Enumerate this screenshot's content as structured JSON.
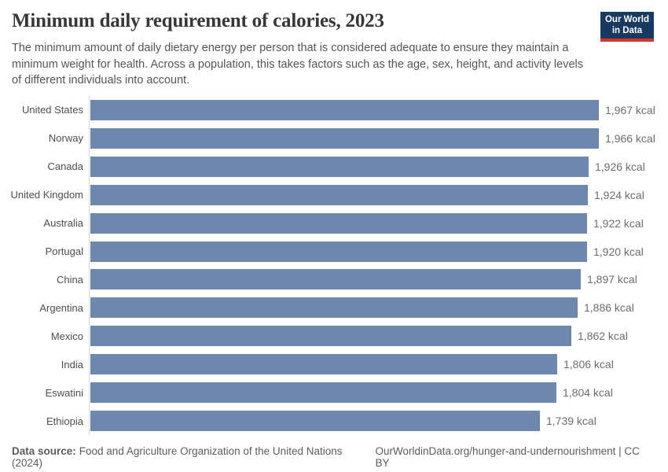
{
  "header": {
    "title": "Minimum daily requirement of calories, 2023",
    "subtitle": "The minimum amount of daily dietary energy per person that is considered adequate to ensure they maintain a minimum weight for health. Across a population, this takes factors such as the age, sex, height, and activity levels of different individuals into account.",
    "logo_line1": "Our World",
    "logo_line2": "in Data"
  },
  "chart_data": {
    "type": "bar",
    "orientation": "horizontal",
    "title": "Minimum daily requirement of calories, 2023",
    "unit": "kcal",
    "xlim": [
      0,
      1967
    ],
    "grid": false,
    "legend": "none",
    "bar_color": "#6e87ad",
    "categories": [
      "United States",
      "Norway",
      "Canada",
      "United Kingdom",
      "Australia",
      "Portugal",
      "China",
      "Argentina",
      "Mexico",
      "India",
      "Eswatini",
      "Ethiopia"
    ],
    "values": [
      1967,
      1966,
      1926,
      1924,
      1922,
      1920,
      1897,
      1886,
      1862,
      1806,
      1804,
      1739
    ],
    "value_labels": [
      "1,967 kcal",
      "1,966 kcal",
      "1,926 kcal",
      "1,924 kcal",
      "1,922 kcal",
      "1,920 kcal",
      "1,897 kcal",
      "1,886 kcal",
      "1,862 kcal",
      "1,806 kcal",
      "1,804 kcal",
      "1,739 kcal"
    ]
  },
  "footer": {
    "source_label": "Data source:",
    "source_text": "Food and Agriculture Organization of the United Nations (2024)",
    "credit": "OurWorldinData.org/hunger-and-undernourishment | CC BY"
  },
  "colors": {
    "bar": "#6e87ad",
    "axis_line": "#dcdcdc",
    "logo_background": "#183a60",
    "logo_underline": "#d3362d"
  }
}
